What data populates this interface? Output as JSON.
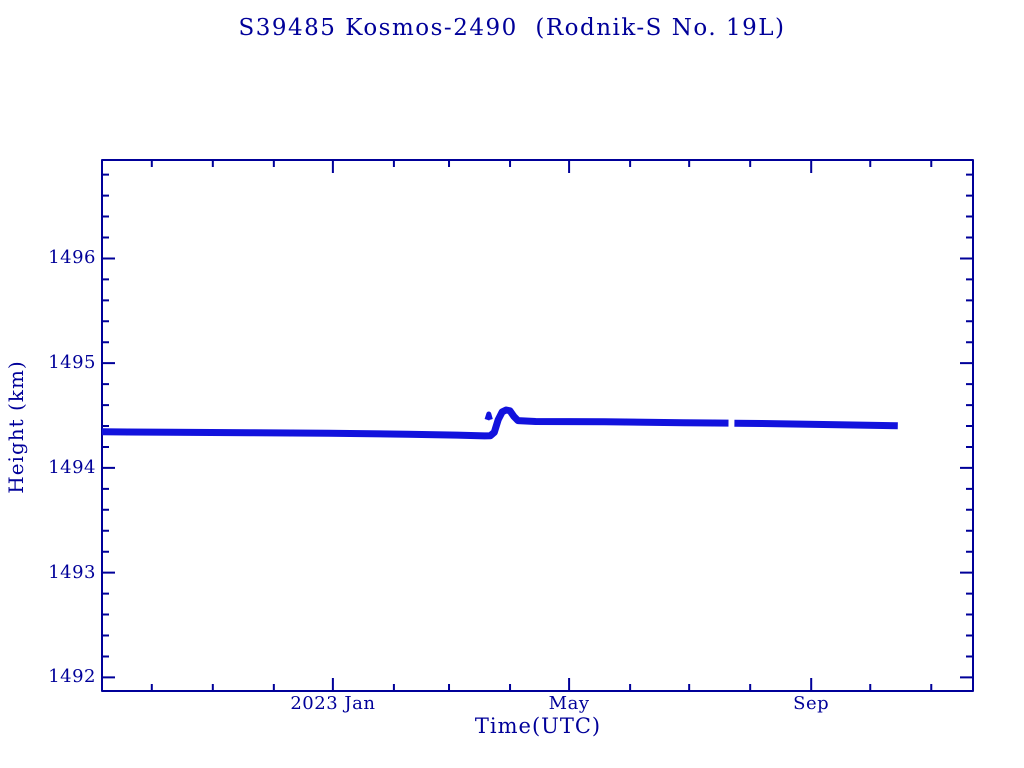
{
  "colors": {
    "text": "#000099",
    "axis": "#000099",
    "data": "#1212DD",
    "background": "#FFFFFF"
  },
  "chart_data": {
    "type": "line",
    "title": "S39485 Kosmos-2490  (Rodnik-S No. 19L)",
    "xlabel": "Time(UTC)",
    "ylabel": "Height (km)",
    "x_unit": "days since 2022-09-01",
    "xlim": [
      4.7,
      447.2
    ],
    "ylim": [
      1491.87,
      1496.94
    ],
    "grid": false,
    "legend": "none",
    "x_major_ticks": [
      {
        "day": 122,
        "label": "2023 Jan"
      },
      {
        "day": 242,
        "label": "May"
      },
      {
        "day": 365,
        "label": "Sep"
      }
    ],
    "x_minor_ticks": [
      30,
      61,
      92,
      153,
      181,
      212,
      273,
      303,
      334,
      395,
      426
    ],
    "y_major_ticks": [
      1492,
      1493,
      1494,
      1495,
      1496
    ],
    "y_minor_step": 0.2,
    "series": [
      {
        "name": "height-segment-1",
        "stroke_width": 7,
        "points": [
          [
            4.7,
            1494.345
          ],
          [
            40,
            1494.34
          ],
          [
            80,
            1494.336
          ],
          [
            120,
            1494.331
          ],
          [
            160,
            1494.322
          ],
          [
            185,
            1494.313
          ],
          [
            199,
            1494.306
          ],
          [
            202,
            1494.308
          ],
          [
            204,
            1494.34
          ],
          [
            206,
            1494.46
          ],
          [
            208,
            1494.535
          ],
          [
            210,
            1494.553
          ],
          [
            212,
            1494.545
          ],
          [
            214,
            1494.49
          ],
          [
            216,
            1494.452
          ],
          [
            225,
            1494.443
          ],
          [
            260,
            1494.44
          ],
          [
            300,
            1494.432
          ],
          [
            323,
            1494.428
          ]
        ]
      },
      {
        "name": "height-segment-2",
        "stroke_width": 7,
        "points": [
          [
            326,
            1494.427
          ],
          [
            340,
            1494.424
          ],
          [
            375,
            1494.414
          ],
          [
            409,
            1494.402
          ]
        ]
      },
      {
        "name": "maneuver-outlier",
        "stroke_width": 5,
        "points": [
          [
            200.3,
            1494.46
          ],
          [
            201.2,
            1494.515
          ],
          [
            202.0,
            1494.46
          ]
        ]
      }
    ]
  }
}
